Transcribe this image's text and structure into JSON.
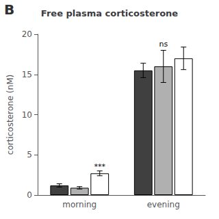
{
  "chart_data": {
    "type": "bar",
    "title": "Free plasma corticosterone",
    "ylabel": "corticosterone (nM)",
    "categories": [
      "morning",
      "evening"
    ],
    "series": [
      {
        "color": "#404040",
        "values": [
          1.2,
          15.5
        ],
        "errors": [
          0.2,
          0.9
        ]
      },
      {
        "color": "#b0b0b0",
        "values": [
          0.9,
          16.0
        ],
        "errors": [
          0.15,
          2.0
        ],
        "annotations": [
          {
            "text": "ns",
            "category": "evening",
            "y": 18.3
          }
        ]
      },
      {
        "color": "#ffffff",
        "values": [
          2.7,
          17.0
        ],
        "errors": [
          0.3,
          1.4
        ],
        "annotations": [
          {
            "text": "***",
            "category": "morning",
            "y": 3.1
          }
        ]
      }
    ],
    "annotations": [
      {
        "text": "B"
      }
    ],
    "ylim": [
      0,
      20
    ],
    "yticks": [
      0,
      5,
      10,
      15,
      20
    ],
    "grid": false
  }
}
